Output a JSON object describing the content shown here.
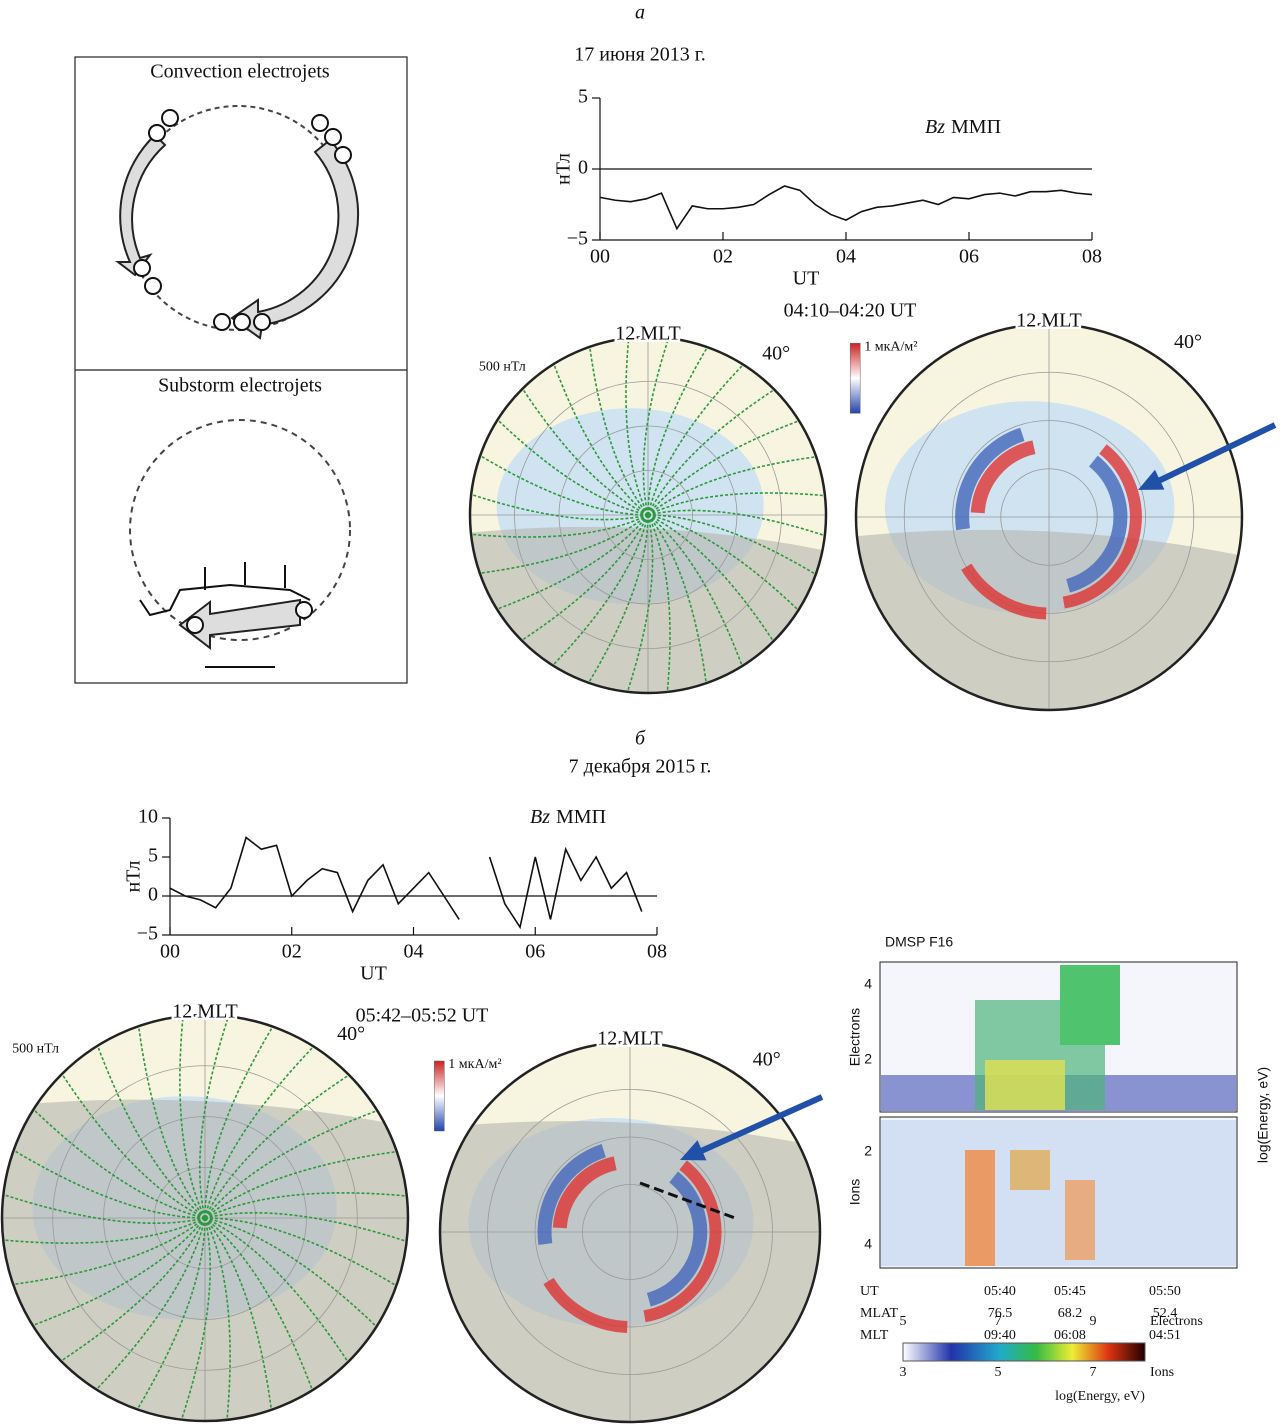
{
  "panel_a": {
    "label": "а",
    "date": "17 июня 2013 г.",
    "maps": {
      "time": "04:10–04:20 UT",
      "left": {
        "mlt": "12 MLT",
        "lat": "40°",
        "scale": "500 нТл"
      },
      "right": {
        "mlt": "12 MLT",
        "lat": "40°",
        "scale": "1 мкА/м²"
      }
    }
  },
  "panel_b": {
    "label": "б",
    "date": "7 декабря 2015 г.",
    "maps": {
      "time": "05:42–05:52 UT",
      "left": {
        "mlt": "12 MLT",
        "lat": "40°",
        "scale": "500 нТл"
      },
      "right": {
        "mlt": "12 MLT",
        "lat": "40°",
        "scale": "1 мкА/м²"
      }
    }
  },
  "diagram": {
    "convection_title": "Convection electrojets",
    "substorm_title": "Substorm electrojets"
  },
  "dmsp": {
    "title": "DMSP F16",
    "electrons_label": "Electrons",
    "ions_label": "Ions",
    "energy_label": "log(Energy, eV)",
    "electrons_ticks": [
      4,
      2
    ],
    "ions_ticks": [
      2,
      4
    ],
    "table": {
      "rows": [
        [
          "UT",
          "05:40",
          "05:45",
          "05:50"
        ],
        [
          "MLAT",
          76.5,
          68.2,
          52.4
        ],
        [
          "MLT",
          "09:40",
          "06:08",
          "04:51"
        ]
      ]
    },
    "colorbar": {
      "electrons_ticks": [
        5,
        7,
        9
      ],
      "electrons_label": "Electrons",
      "ions_ticks": [
        3,
        5,
        7
      ],
      "ions_label": "Ions",
      "label": "log(Energy, eV)"
    }
  },
  "chart_data": [
    {
      "type": "line",
      "annotation_symbol": "Bz",
      "annotation": "ММП",
      "ylabel": "нТл",
      "xlabel": "UT",
      "xlim": [
        0,
        8
      ],
      "ylim": [
        -5,
        5
      ],
      "xticks": [
        {
          "value": 0,
          "label": "00"
        },
        {
          "value": 2,
          "label": "02"
        },
        {
          "value": 4,
          "label": "04"
        },
        {
          "value": 6,
          "label": "06"
        },
        {
          "value": 8,
          "label": "08"
        }
      ],
      "yticks": [
        {
          "value": -5,
          "label": "−5"
        },
        0,
        5
      ],
      "zero_line": true,
      "x": [
        0,
        0.25,
        0.5,
        0.75,
        1,
        1.25,
        1.5,
        1.75,
        2,
        2.25,
        2.5,
        2.75,
        3,
        3.25,
        3.5,
        3.75,
        4,
        4.25,
        4.5,
        4.75,
        5,
        5.25,
        5.5,
        5.75,
        6,
        6.25,
        6.5,
        6.75,
        7,
        7.25,
        7.5,
        7.75,
        8
      ],
      "series": [
        {
          "color": "#111111",
          "values": [
            -2.0,
            -2.2,
            -2.3,
            -2.1,
            -1.7,
            -4.2,
            -2.6,
            -2.8,
            -2.8,
            -2.7,
            -2.5,
            -1.8,
            -1.2,
            -1.5,
            -2.5,
            -3.2,
            -3.6,
            -3.0,
            -2.7,
            -2.6,
            -2.4,
            -2.2,
            -2.5,
            -2.0,
            -2.1,
            -1.8,
            -1.7,
            -1.9,
            -1.6,
            -1.6,
            -1.5,
            -1.7,
            -1.8
          ]
        }
      ]
    },
    {
      "type": "line",
      "annotation_symbol": "Bz",
      "annotation": "ММП",
      "ylabel": "нТл",
      "xlabel": "UT",
      "xlim": [
        0,
        8
      ],
      "ylim": [
        -5,
        10
      ],
      "xticks": [
        {
          "value": 0,
          "label": "00"
        },
        {
          "value": 2,
          "label": "02"
        },
        {
          "value": 4,
          "label": "04"
        },
        {
          "value": 6,
          "label": "06"
        },
        {
          "value": 8,
          "label": "08"
        }
      ],
      "yticks": [
        {
          "value": -5,
          "label": "−5"
        },
        0,
        5,
        10
      ],
      "zero_line": true,
      "x": [
        0,
        0.25,
        0.5,
        0.75,
        1,
        1.25,
        1.5,
        1.75,
        2,
        2.25,
        2.5,
        2.75,
        3,
        3.25,
        3.5,
        3.75,
        4,
        4.25,
        4.5,
        4.75,
        5,
        5.25,
        5.5,
        5.75,
        6,
        6.25,
        6.5,
        6.75,
        7,
        7.25,
        7.5,
        7.75,
        8
      ],
      "series": [
        {
          "color": "#111111",
          "values": [
            1,
            0,
            -0.5,
            -1.5,
            1,
            7.5,
            6,
            6.5,
            0,
            2,
            3.5,
            3,
            -2,
            2,
            4,
            -1,
            1,
            3,
            0,
            -3,
            null,
            5,
            -1,
            -4,
            5,
            -3,
            6,
            2,
            5,
            1,
            3,
            -2,
            null
          ]
        }
      ]
    }
  ]
}
